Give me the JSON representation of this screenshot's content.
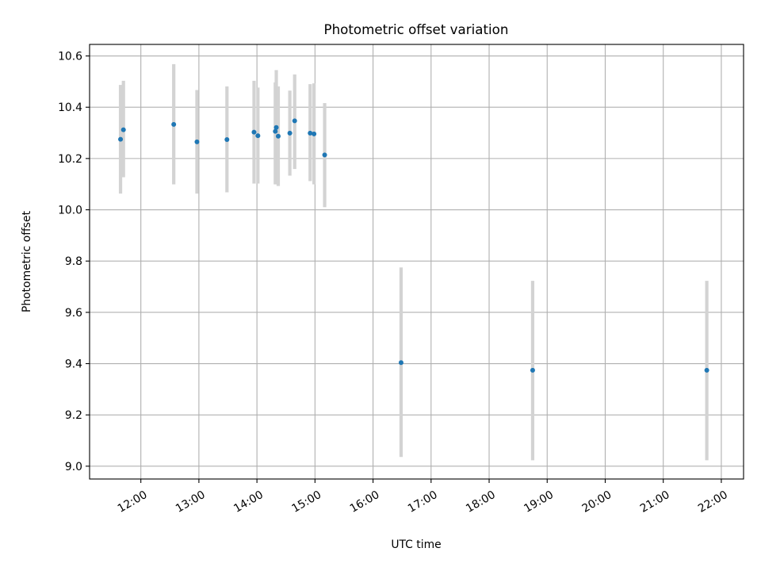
{
  "chart_data": {
    "type": "scatter",
    "title": "Photometric offset variation",
    "xlabel": "UTC time",
    "ylabel": "Photometric offset",
    "x_unit": "UTC time (HH:MM)",
    "xlim": [
      "11:07",
      "22:23"
    ],
    "ylim": [
      8.95,
      10.645
    ],
    "x_ticks": [
      "12:00",
      "13:00",
      "14:00",
      "15:00",
      "16:00",
      "17:00",
      "18:00",
      "19:00",
      "20:00",
      "21:00",
      "22:00"
    ],
    "y_ticks": [
      9.0,
      9.2,
      9.4,
      9.6,
      9.8,
      10.0,
      10.2,
      10.4,
      10.6
    ],
    "grid": true,
    "legend": "none",
    "colors": {
      "points": "#1f77b4",
      "errorbars": "#d3d3d3",
      "grid": "#b0b0b0"
    },
    "series": [
      {
        "points": [
          {
            "x": "11:39",
            "y": 10.275,
            "ylow": 10.063,
            "yhigh": 10.487
          },
          {
            "x": "11:42",
            "y": 10.312,
            "ylow": 10.127,
            "yhigh": 10.503
          },
          {
            "x": "12:34",
            "y": 10.333,
            "ylow": 10.099,
            "yhigh": 10.568
          },
          {
            "x": "12:58",
            "y": 10.265,
            "ylow": 10.063,
            "yhigh": 10.467
          },
          {
            "x": "13:29",
            "y": 10.274,
            "ylow": 10.068,
            "yhigh": 10.481
          },
          {
            "x": "13:57",
            "y": 10.303,
            "ylow": 10.102,
            "yhigh": 10.503
          },
          {
            "x": "14:01",
            "y": 10.289,
            "ylow": 10.102,
            "yhigh": 10.477
          },
          {
            "x": "14:19",
            "y": 10.306,
            "ylow": 10.099,
            "yhigh": 10.497
          },
          {
            "x": "14:20",
            "y": 10.321,
            "ylow": 10.12,
            "yhigh": 10.545
          },
          {
            "x": "14:22",
            "y": 10.287,
            "ylow": 10.093,
            "yhigh": 10.481
          },
          {
            "x": "14:34",
            "y": 10.299,
            "ylow": 10.133,
            "yhigh": 10.465
          },
          {
            "x": "14:39",
            "y": 10.347,
            "ylow": 10.159,
            "yhigh": 10.528
          },
          {
            "x": "14:55",
            "y": 10.299,
            "ylow": 10.112,
            "yhigh": 10.49
          },
          {
            "x": "14:59",
            "y": 10.296,
            "ylow": 10.099,
            "yhigh": 10.493
          },
          {
            "x": "15:10",
            "y": 10.214,
            "ylow": 10.01,
            "yhigh": 10.416
          },
          {
            "x": "16:29",
            "y": 9.404,
            "ylow": 9.036,
            "yhigh": 9.775
          },
          {
            "x": "18:45",
            "y": 9.374,
            "ylow": 9.023,
            "yhigh": 9.723
          },
          {
            "x": "21:45",
            "y": 9.374,
            "ylow": 9.023,
            "yhigh": 9.723
          }
        ]
      }
    ]
  }
}
